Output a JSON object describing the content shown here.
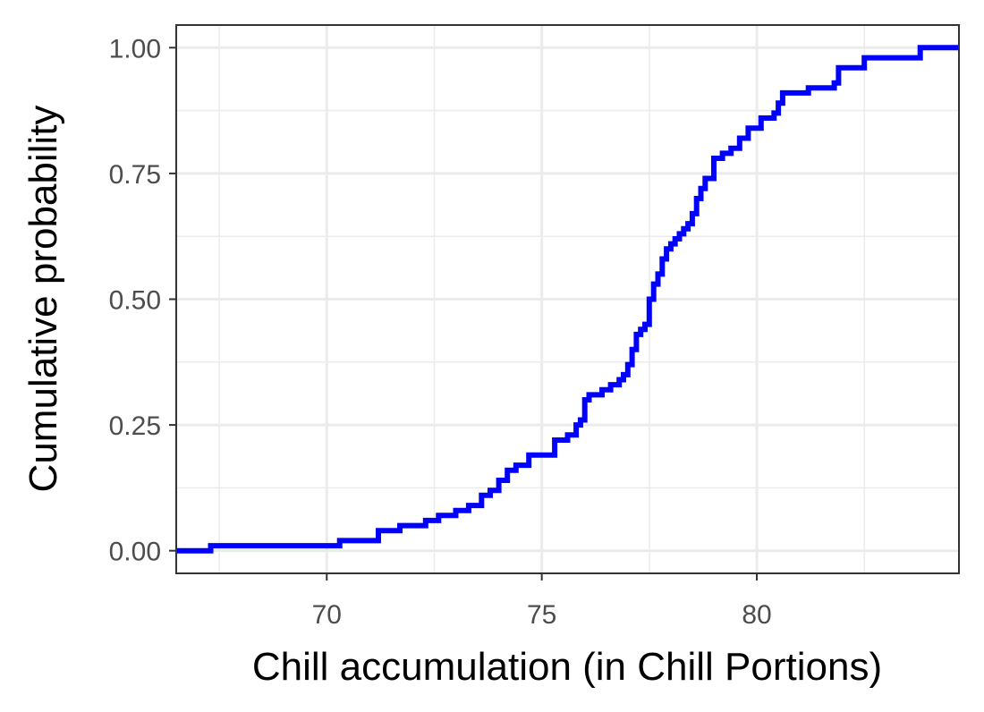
{
  "chart_data": {
    "type": "line",
    "subtype": "ecdf-step",
    "title": "",
    "xlabel": "Chill accumulation (in Chill Portions)",
    "ylabel": "Cumulative probability",
    "xlim": [
      66.5,
      84.7
    ],
    "ylim": [
      -0.045,
      1.045
    ],
    "x_ticks": [
      70,
      75,
      80
    ],
    "x_tick_labels": [
      "70",
      "75",
      "80"
    ],
    "x_minor_ticks": [
      67.5,
      72.5,
      77.5,
      82.5
    ],
    "y_ticks": [
      0,
      0.25,
      0.5,
      0.75,
      1
    ],
    "y_tick_labels": [
      "0.00",
      "0.25",
      "0.50",
      "0.75",
      "1.00"
    ],
    "y_minor_ticks": [
      0.125,
      0.375,
      0.625,
      0.875
    ],
    "grid": true,
    "line_color": "#0000ff",
    "series": [
      {
        "name": "ECDF",
        "x": [
          66.5,
          67.3,
          70.3,
          71.2,
          71.7,
          72.3,
          72.6,
          73.0,
          73.3,
          73.6,
          73.8,
          74.0,
          74.2,
          74.4,
          74.7,
          75.3,
          75.6,
          75.8,
          75.9,
          76.0,
          76.1,
          76.4,
          76.6,
          76.8,
          76.9,
          77.0,
          77.1,
          77.2,
          77.3,
          77.4,
          77.5,
          77.6,
          77.7,
          77.8,
          77.9,
          78.0,
          78.1,
          78.2,
          78.3,
          78.4,
          78.5,
          78.6,
          78.7,
          78.8,
          79.0,
          79.2,
          79.4,
          79.6,
          79.8,
          80.1,
          80.4,
          80.5,
          80.6,
          81.2,
          81.8,
          81.9,
          82.5,
          83.8,
          84.7
        ],
        "y": [
          0.0,
          0.01,
          0.02,
          0.04,
          0.05,
          0.06,
          0.07,
          0.08,
          0.09,
          0.11,
          0.12,
          0.14,
          0.16,
          0.17,
          0.19,
          0.22,
          0.23,
          0.25,
          0.26,
          0.3,
          0.31,
          0.32,
          0.33,
          0.34,
          0.35,
          0.37,
          0.4,
          0.43,
          0.44,
          0.45,
          0.5,
          0.53,
          0.55,
          0.58,
          0.6,
          0.61,
          0.62,
          0.63,
          0.64,
          0.65,
          0.67,
          0.7,
          0.72,
          0.74,
          0.78,
          0.79,
          0.8,
          0.82,
          0.84,
          0.86,
          0.87,
          0.89,
          0.91,
          0.92,
          0.93,
          0.96,
          0.98,
          1.0,
          1.0
        ]
      }
    ]
  }
}
